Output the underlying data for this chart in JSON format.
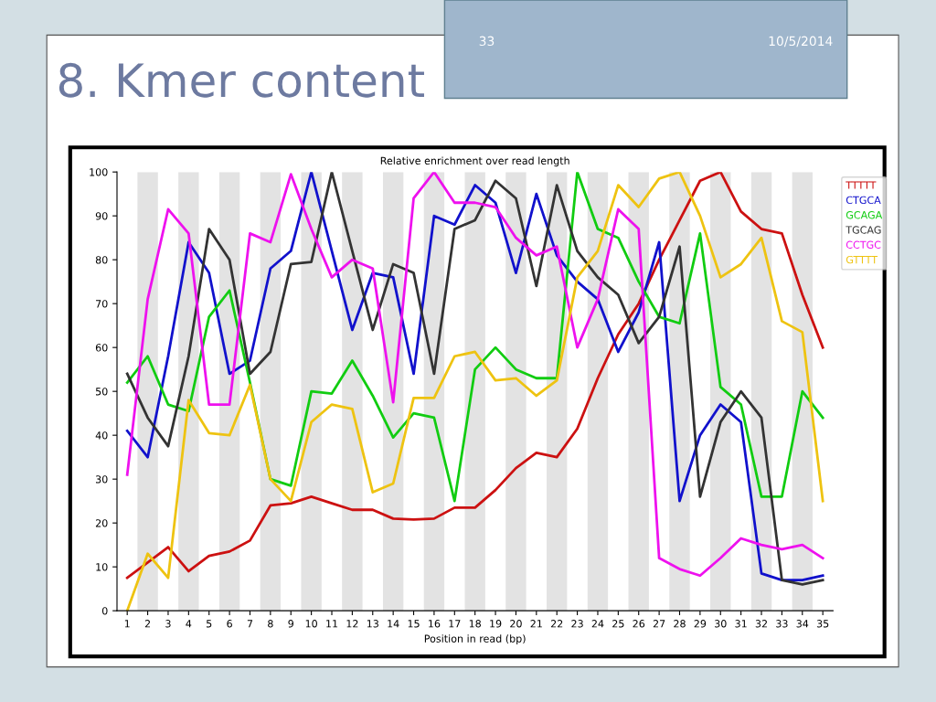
{
  "chart_data": {
    "type": "line",
    "title": "8. Kmer content",
    "subtitle": "Relative enrichment over read length",
    "xlabel": "Position in read (bp)",
    "annotations": [
      "33",
      "10/5/2014"
    ],
    "x": [
      1,
      2,
      3,
      4,
      5,
      6,
      7,
      8,
      9,
      10,
      11,
      12,
      13,
      14,
      15,
      16,
      17,
      18,
      19,
      20,
      21,
      22,
      23,
      24,
      25,
      26,
      27,
      28,
      29,
      30,
      31,
      32,
      33,
      34,
      35
    ],
    "xlim": [
      0.5,
      35.5
    ],
    "xticks": [
      1,
      2,
      3,
      4,
      5,
      6,
      7,
      8,
      9,
      10,
      11,
      12,
      13,
      14,
      15,
      16,
      17,
      18,
      19,
      20,
      21,
      22,
      23,
      24,
      25,
      26,
      27,
      28,
      29,
      30,
      31,
      32,
      33,
      34,
      35
    ],
    "ylim": [
      0,
      100
    ],
    "yticks": [
      0,
      10,
      20,
      30,
      40,
      50,
      60,
      70,
      80,
      90,
      100
    ],
    "grid": false,
    "legend": "top right",
    "marker": "none",
    "line_style": "solid",
    "series": [
      {
        "name": "TTTTT",
        "color": "#cc1111",
        "values": [
          7.5,
          11,
          14.5,
          9,
          12.5,
          13.5,
          16,
          24,
          24.5,
          26,
          24.5,
          23,
          23,
          21,
          20.8,
          21,
          23.5,
          23.5,
          27.5,
          32.5,
          36,
          35,
          41.5,
          53,
          63,
          70,
          80,
          89,
          98,
          100,
          91,
          87,
          86,
          72,
          60
        ]
      },
      {
        "name": "CTGCA",
        "color": "#1111cc",
        "values": [
          41,
          35,
          58,
          84,
          77,
          54,
          57,
          78,
          82,
          100,
          82,
          64,
          77,
          76,
          54,
          90,
          88,
          97,
          93,
          77,
          95,
          81,
          75,
          71,
          59,
          68,
          84,
          25,
          40,
          47,
          43,
          8.5,
          7,
          7,
          8
        ]
      },
      {
        "name": "GCAGA",
        "color": "#11cc11",
        "values": [
          52,
          58,
          47,
          45.5,
          67,
          73,
          52,
          30,
          28.5,
          50,
          49.5,
          57,
          49,
          39.5,
          45,
          44,
          25,
          55,
          60,
          55,
          53,
          53,
          100,
          87,
          85,
          75,
          67,
          65.5,
          86,
          51,
          47,
          26,
          26,
          50,
          44
        ]
      },
      {
        "name": "TGCAG",
        "color": "#333333",
        "values": [
          54,
          44,
          37.5,
          58,
          87,
          80,
          54,
          59,
          79,
          79.5,
          100,
          82,
          64,
          79,
          77,
          54,
          87,
          89,
          98,
          94,
          74,
          97,
          82,
          76,
          72,
          61,
          67,
          83,
          26,
          43,
          50,
          44,
          7,
          6,
          7
        ]
      },
      {
        "name": "CCTGC",
        "color": "#ee11ee",
        "values": [
          31,
          71,
          91.5,
          86,
          47,
          47,
          86,
          84,
          99.5,
          87,
          76,
          80,
          78,
          47.5,
          94,
          100,
          93,
          93,
          92,
          85,
          81,
          83,
          60,
          71,
          91.5,
          87,
          12,
          9.5,
          8,
          12,
          16.5,
          15,
          14,
          15,
          12
        ]
      },
      {
        "name": "GTTTT",
        "color": "#eec311",
        "values": [
          0,
          13,
          7.5,
          48,
          40.5,
          40,
          51.5,
          30,
          25,
          43,
          47,
          46,
          27,
          29,
          48.5,
          48.5,
          58,
          59,
          52.5,
          53,
          49,
          52.5,
          76,
          82,
          97,
          92,
          98.5,
          100,
          90,
          76,
          79,
          85,
          66,
          63.5,
          25
        ]
      }
    ],
    "bands": [
      {
        "axis": "x",
        "from": 1.5,
        "to": 2.5,
        "color": "#e3e3e3"
      },
      {
        "axis": "x",
        "from": 3.5,
        "to": 4.5,
        "color": "#e3e3e3"
      },
      {
        "axis": "x",
        "from": 5.5,
        "to": 6.5,
        "color": "#e3e3e3"
      },
      {
        "axis": "x",
        "from": 7.5,
        "to": 8.5,
        "color": "#e3e3e3"
      },
      {
        "axis": "x",
        "from": 9.5,
        "to": 10.5,
        "color": "#e3e3e3"
      },
      {
        "axis": "x",
        "from": 11.5,
        "to": 12.5,
        "color": "#e3e3e3"
      },
      {
        "axis": "x",
        "from": 13.5,
        "to": 14.5,
        "color": "#e3e3e3"
      },
      {
        "axis": "x",
        "from": 15.5,
        "to": 16.5,
        "color": "#e3e3e3"
      },
      {
        "axis": "x",
        "from": 17.5,
        "to": 18.5,
        "color": "#e3e3e3"
      },
      {
        "axis": "x",
        "from": 19.5,
        "to": 20.5,
        "color": "#e3e3e3"
      },
      {
        "axis": "x",
        "from": 21.5,
        "to": 22.5,
        "color": "#e3e3e3"
      },
      {
        "axis": "x",
        "from": 23.5,
        "to": 24.5,
        "color": "#e3e3e3"
      },
      {
        "axis": "x",
        "from": 25.5,
        "to": 26.5,
        "color": "#e3e3e3"
      },
      {
        "axis": "x",
        "from": 27.5,
        "to": 28.5,
        "color": "#e3e3e3"
      },
      {
        "axis": "x",
        "from": 29.5,
        "to": 30.5,
        "color": "#e3e3e3"
      },
      {
        "axis": "x",
        "from": 31.5,
        "to": 32.5,
        "color": "#e3e3e3"
      },
      {
        "axis": "x",
        "from": 33.5,
        "to": 34.5,
        "color": "#e3e3e3"
      }
    ]
  }
}
